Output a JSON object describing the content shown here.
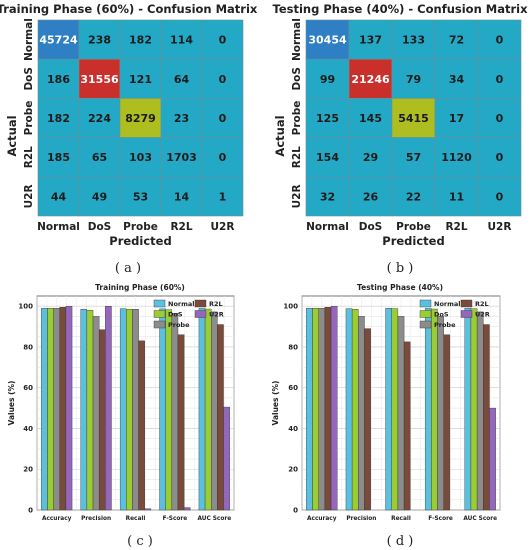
{
  "chart_data": [
    {
      "type": "heatmap",
      "title": "Training Phase (60%) - Confusion Matrix",
      "xlabel": "Predicted",
      "ylabel": "Actual",
      "x_categories": [
        "Normal",
        "DoS",
        "Probe",
        "R2L",
        "U2R"
      ],
      "y_categories": [
        "Normal",
        "DoS",
        "Probe",
        "R2L",
        "U2R"
      ],
      "values": [
        [
          45724,
          238,
          182,
          114,
          0
        ],
        [
          186,
          31556,
          121,
          64,
          0
        ],
        [
          182,
          224,
          8279,
          23,
          0
        ],
        [
          185,
          65,
          103,
          1703,
          0
        ],
        [
          44,
          49,
          53,
          14,
          1
        ]
      ],
      "caption": "( a )"
    },
    {
      "type": "heatmap",
      "title": "Testing Phase (40%) - Confusion Matrix",
      "xlabel": "Predicted",
      "ylabel": "Actual",
      "x_categories": [
        "Normal",
        "DoS",
        "Probe",
        "R2L",
        "U2R"
      ],
      "y_categories": [
        "Normal",
        "DoS",
        "Probe",
        "R2L",
        "U2R"
      ],
      "values": [
        [
          30454,
          137,
          133,
          72,
          0
        ],
        [
          99,
          21246,
          79,
          34,
          0
        ],
        [
          125,
          145,
          5415,
          17,
          0
        ],
        [
          154,
          29,
          57,
          1120,
          0
        ],
        [
          32,
          26,
          22,
          11,
          0
        ]
      ],
      "caption": "( b )"
    },
    {
      "type": "bar",
      "title": "Training Phase (60%)",
      "xlabel": "",
      "ylabel": "Values (%)",
      "ylim": [
        0,
        105
      ],
      "yticks": [
        0,
        20,
        40,
        60,
        80,
        100
      ],
      "grid": true,
      "legend": "top-right",
      "categories": [
        "Accuracy",
        "Precision",
        "Recall",
        "F-Score",
        "AUC Score"
      ],
      "series": [
        {
          "name": "Normal",
          "values": [
            99.0,
            98.5,
            98.8,
            98.7,
            98.9
          ]
        },
        {
          "name": "DoS",
          "values": [
            99.0,
            98.0,
            98.5,
            98.3,
            98.6
          ]
        },
        {
          "name": "Probe",
          "values": [
            99.0,
            95.0,
            98.5,
            96.5,
            97.2
          ]
        },
        {
          "name": "R2L",
          "values": [
            99.5,
            88.5,
            83.0,
            86.0,
            91.0
          ]
        },
        {
          "name": "U2R",
          "values": [
            100.0,
            100.0,
            0.6,
            1.2,
            50.5
          ]
        }
      ],
      "caption": "( c )"
    },
    {
      "type": "bar",
      "title": "Testing Phase (40%)",
      "xlabel": "",
      "ylabel": "Values (%)",
      "ylim": [
        0,
        105
      ],
      "yticks": [
        0,
        20,
        40,
        60,
        80,
        100
      ],
      "grid": true,
      "legend": "top-right",
      "categories": [
        "Accuracy",
        "Precision",
        "Recall",
        "F-Score",
        "AUC Score"
      ],
      "series": [
        {
          "name": "Normal",
          "values": [
            99.0,
            98.8,
            99.0,
            98.9,
            99.0
          ]
        },
        {
          "name": "DoS",
          "values": [
            99.0,
            98.5,
            98.8,
            98.6,
            98.8
          ]
        },
        {
          "name": "Probe",
          "values": [
            99.0,
            95.0,
            95.0,
            95.0,
            97.2
          ]
        },
        {
          "name": "R2L",
          "values": [
            99.5,
            89.0,
            82.5,
            86.0,
            91.0
          ]
        },
        {
          "name": "U2R",
          "values": [
            100.0,
            0.0,
            0.0,
            0.0,
            50.0
          ]
        }
      ],
      "caption": "( d )"
    }
  ],
  "colors": {
    "heat_low": "#23a9c6",
    "heat_normal_diag": "#2f7fc4",
    "heat_dos_diag": "#c9302c",
    "heat_probe_diag": "#aebd1f",
    "heat_text_dark": "#1c1c1c",
    "heat_text_light": "#ffffff",
    "series": [
      "#5bc0de",
      "#9acd32",
      "#8c8c8c",
      "#7a4a3a",
      "#9467bd"
    ]
  }
}
